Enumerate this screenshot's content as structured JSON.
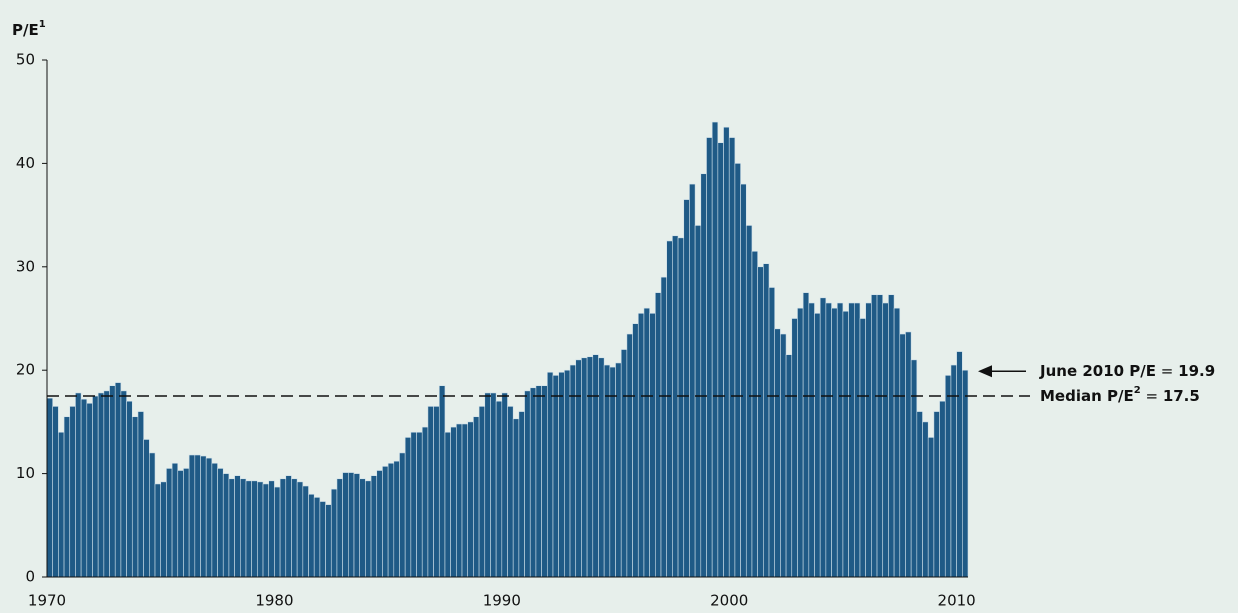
{
  "chart_data": {
    "type": "bar",
    "y_label": "P/E",
    "y_label_sup": "1",
    "color": "#1f5a86",
    "edge_color": "#cfe0ea",
    "grid": false,
    "xlim": [
      1970,
      2010.5
    ],
    "xticks": [
      1970,
      1980,
      1990,
      2000,
      2010
    ],
    "ylim": [
      0,
      50
    ],
    "yticks": [
      0,
      10,
      20,
      30,
      40,
      50
    ],
    "bar_width": 0.25,
    "x": [
      1970,
      1970.25,
      1970.5,
      1970.75,
      1971,
      1971.25,
      1971.5,
      1971.75,
      1972,
      1972.25,
      1972.5,
      1972.75,
      1973,
      1973.25,
      1973.5,
      1973.75,
      1974,
      1974.25,
      1974.5,
      1974.75,
      1975,
      1975.25,
      1975.5,
      1975.75,
      1976,
      1976.25,
      1976.5,
      1976.75,
      1977,
      1977.25,
      1977.5,
      1977.75,
      1978,
      1978.25,
      1978.5,
      1978.75,
      1979,
      1979.25,
      1979.5,
      1979.75,
      1980,
      1980.25,
      1980.5,
      1980.75,
      1981,
      1981.25,
      1981.5,
      1981.75,
      1982,
      1982.25,
      1982.5,
      1982.75,
      1983,
      1983.25,
      1983.5,
      1983.75,
      1984,
      1984.25,
      1984.5,
      1984.75,
      1985,
      1985.25,
      1985.5,
      1985.75,
      1986,
      1986.25,
      1986.5,
      1986.75,
      1987,
      1987.25,
      1987.5,
      1987.75,
      1988,
      1988.25,
      1988.5,
      1988.75,
      1989,
      1989.25,
      1989.5,
      1989.75,
      1990,
      1990.25,
      1990.5,
      1990.75,
      1991,
      1991.25,
      1991.5,
      1991.75,
      1992,
      1992.25,
      1992.5,
      1992.75,
      1993,
      1993.25,
      1993.5,
      1993.75,
      1994,
      1994.25,
      1994.5,
      1994.75,
      1995,
      1995.25,
      1995.5,
      1995.75,
      1996,
      1996.25,
      1996.5,
      1996.75,
      1997,
      1997.25,
      1997.5,
      1997.75,
      1998,
      1998.25,
      1998.5,
      1998.75,
      1999,
      1999.25,
      1999.5,
      1999.75,
      2000,
      2000.25,
      2000.5,
      2000.75,
      2001,
      2001.25,
      2001.5,
      2001.75,
      2002,
      2002.25,
      2002.5,
      2002.75,
      2003,
      2003.25,
      2003.5,
      2003.75,
      2004,
      2004.25,
      2004.5,
      2004.75,
      2005,
      2005.25,
      2005.5,
      2005.75,
      2006,
      2006.25,
      2006.5,
      2006.75,
      2007,
      2007.25,
      2007.5,
      2007.75,
      2008,
      2008.25,
      2008.5,
      2008.75,
      2009,
      2009.25,
      2009.5,
      2009.75,
      2010,
      2010.25
    ],
    "values": [
      17.3,
      16.5,
      14,
      15.5,
      16.5,
      17.8,
      17.2,
      16.8,
      17.5,
      17.8,
      18,
      18.5,
      18.8,
      18,
      17,
      15.5,
      16,
      13.3,
      12,
      9,
      9.2,
      10.5,
      11,
      10.3,
      10.5,
      11.8,
      11.8,
      11.7,
      11.5,
      11,
      10.5,
      10,
      9.5,
      9.8,
      9.5,
      9.3,
      9.3,
      9.2,
      9,
      9.3,
      8.7,
      9.5,
      9.8,
      9.5,
      9.2,
      8.8,
      8,
      7.7,
      7.3,
      7,
      8.5,
      9.5,
      10.1,
      10.1,
      10,
      9.5,
      9.3,
      9.8,
      10.3,
      10.7,
      11,
      11.2,
      12,
      13.5,
      14,
      14,
      14.5,
      16.5,
      16.5,
      18.5,
      14,
      14.5,
      14.8,
      14.8,
      15,
      15.5,
      16.5,
      17.8,
      17.8,
      17,
      17.8,
      16.5,
      15.3,
      16,
      18,
      18.3,
      18.5,
      18.5,
      19.8,
      19.5,
      19.8,
      20,
      20.5,
      21,
      21.2,
      21.3,
      21.5,
      21.2,
      20.5,
      20.3,
      20.7,
      22,
      23.5,
      24.5,
      25.5,
      26,
      25.5,
      27.5,
      29,
      32.5,
      33,
      32.8,
      36.5,
      38,
      34,
      39,
      42.5,
      44,
      42,
      43.5,
      42.5,
      40,
      38,
      34,
      31.5,
      30,
      30.3,
      28,
      24,
      23.5,
      21.5,
      25,
      26,
      27.5,
      26.5,
      25.5,
      27,
      26.5,
      26,
      26.5,
      25.7,
      26.5,
      26.5,
      25,
      26.5,
      27.3,
      27.3,
      26.5,
      27.3,
      26,
      23.5,
      23.7,
      21,
      16,
      15,
      13.5,
      16,
      17,
      19.5,
      20.5,
      21.8,
      20
    ],
    "annotations": [
      {
        "parts": [
          "June 2010 P/E",
          " = ",
          "19.9"
        ],
        "value": 19.9,
        "style": "arrow"
      },
      {
        "parts": [
          "Median P/E",
          "2",
          " = ",
          "17.5"
        ],
        "value": 17.5,
        "style": "dashed"
      }
    ]
  }
}
